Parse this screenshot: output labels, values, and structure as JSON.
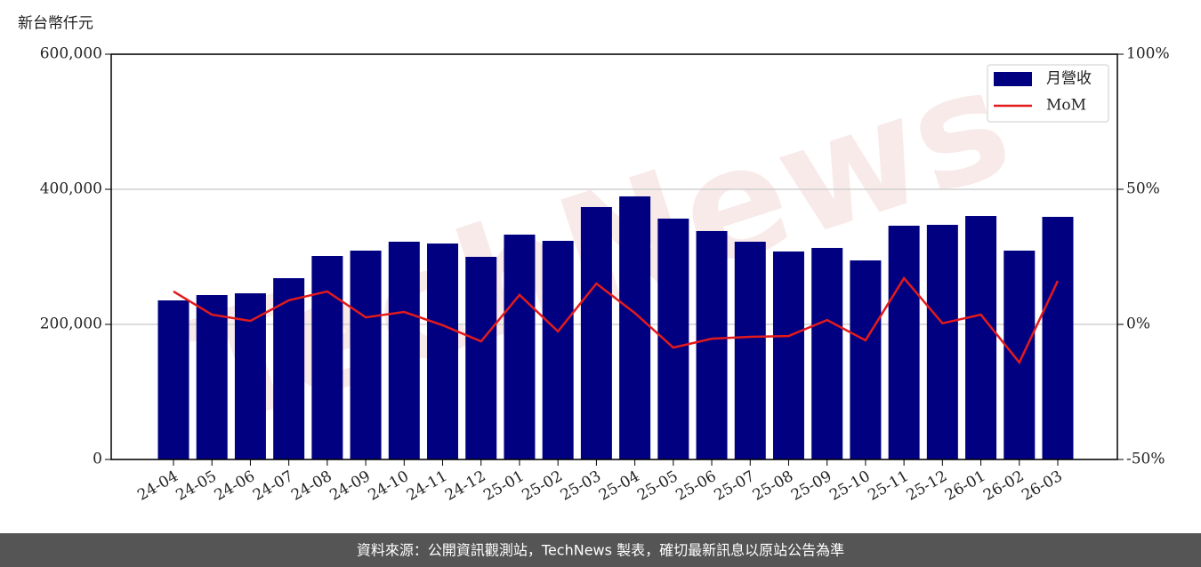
{
  "chart_data": {
    "type": "bar",
    "y_label": "新台幣仟元",
    "watermark": "TechNews",
    "source": "資料來源：公開資訊觀測站，TechNews 製表，確切最新訊息以原站公告為準",
    "categories": [
      "24-04",
      "24-05",
      "24-06",
      "24-07",
      "24-08",
      "24-09",
      "24-10",
      "24-11",
      "24-12",
      "25-01",
      "25-02",
      "25-03",
      "25-04",
      "25-05",
      "25-06",
      "25-07",
      "25-08",
      "25-09",
      "25-10",
      "25-11",
      "25-12",
      "26-01",
      "26-02",
      "26-03"
    ],
    "series": [
      {
        "name": "月營收",
        "type": "bar",
        "color": "#000080",
        "values": [
          235500,
          243400,
          246000,
          268400,
          301300,
          309200,
          322400,
          319700,
          300000,
          332900,
          323700,
          373700,
          389500,
          356600,
          338200,
          322400,
          307900,
          313200,
          294700,
          346100,
          347400,
          360500,
          309200,
          359200
        ]
      },
      {
        "name": "MoM",
        "type": "line",
        "axis": "y2",
        "color": "#e31a1c",
        "values": [
          12.2,
          3.6,
          1.3,
          8.9,
          12.2,
          2.6,
          4.6,
          -0.3,
          -6.3,
          10.9,
          -2.6,
          15.1,
          4.2,
          -8.6,
          -5.3,
          -4.6,
          -4.3,
          1.6,
          -5.9,
          17.1,
          0.4,
          3.6,
          -14.1,
          16.1
        ]
      }
    ],
    "ylim": [
      0,
      600000
    ],
    "yticks": [
      0,
      {
        "value": 200000,
        "label": "200,000"
      },
      {
        "value": 400000,
        "label": "400,000"
      },
      {
        "value": 600000,
        "label": "600,000"
      }
    ],
    "y2lim": [
      -50,
      100
    ],
    "y2ticks": [
      {
        "value": -50,
        "label": "-50%"
      },
      {
        "value": 0,
        "label": "0%"
      },
      {
        "value": 50,
        "label": "50%"
      },
      {
        "value": 100,
        "label": "100%"
      }
    ],
    "grid": true,
    "legend": "upper right"
  }
}
